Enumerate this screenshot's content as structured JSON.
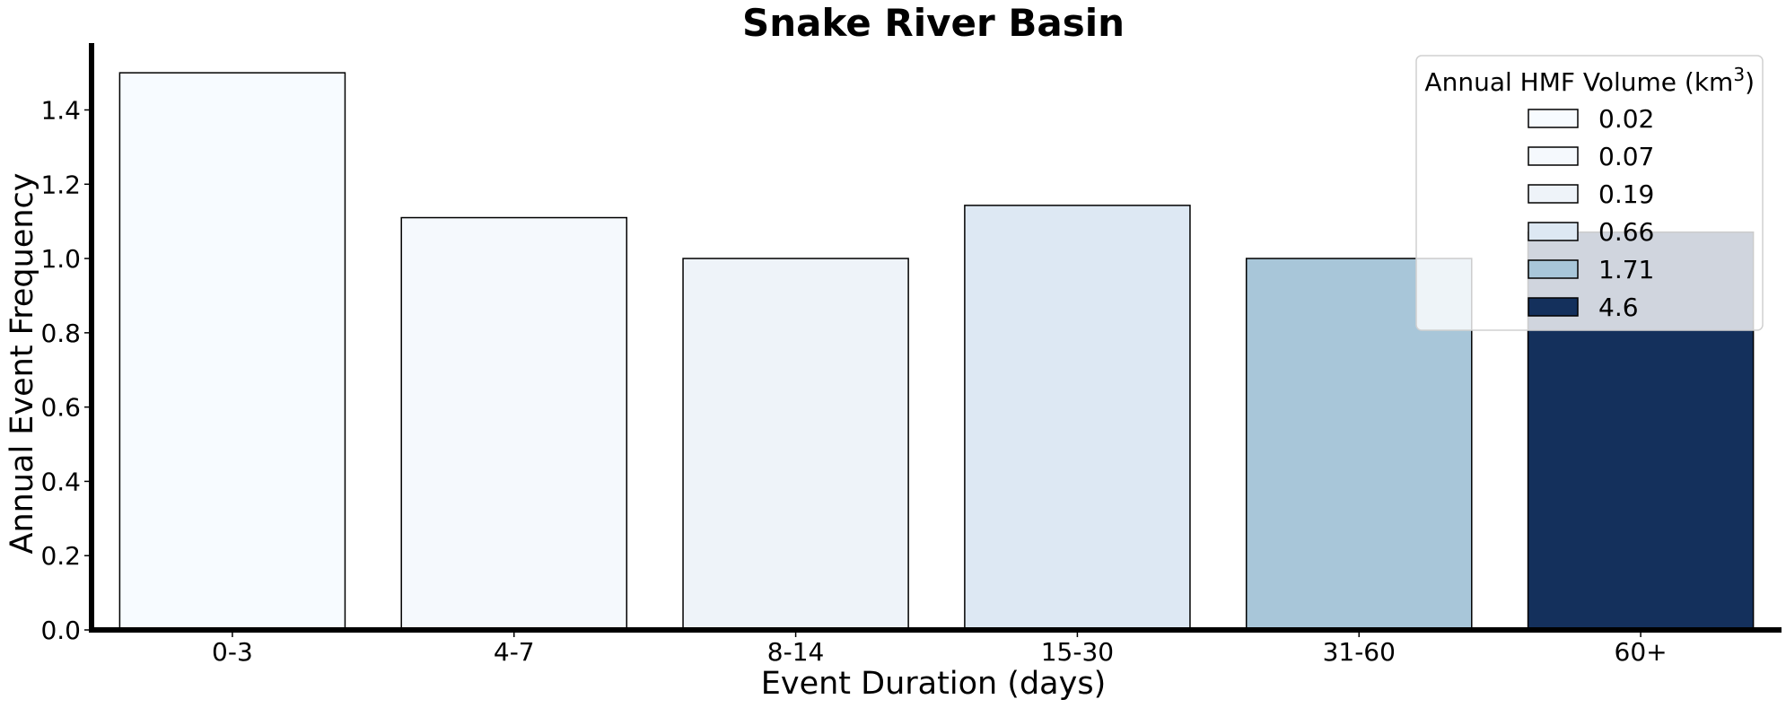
{
  "chart_data": {
    "type": "bar",
    "title": "Snake River Basin",
    "xlabel": "Event Duration (days)",
    "ylabel": "Annual Event Frequency",
    "categories": [
      "0-3",
      "4-7",
      "8-14",
      "15-30",
      "31-60",
      "60+"
    ],
    "values": [
      1.5,
      1.11,
      1.0,
      1.143,
      1.0,
      1.071
    ],
    "bar_colors": [
      "#f7fbff",
      "#f5f9fd",
      "#eef3f9",
      "#dde8f3",
      "#a8c6d9",
      "#14305c"
    ],
    "ylim": [
      0,
      1.58
    ],
    "yticks": [
      0.0,
      0.2,
      0.4,
      0.6,
      0.8,
      1.0,
      1.2,
      1.4
    ],
    "ytick_labels": [
      "0.0",
      "0.2",
      "0.4",
      "0.6",
      "0.8",
      "1.0",
      "1.2",
      "1.4"
    ],
    "grid": false,
    "legend": {
      "title_main": "Annual HMF Volume (km",
      "title_sup": "3",
      "title_end": ")",
      "placement": "top-right",
      "entries": [
        {
          "label": "0.02",
          "color": "#f7fbff"
        },
        {
          "label": "0.07",
          "color": "#f5f9fd"
        },
        {
          "label": "0.19",
          "color": "#eef3f9"
        },
        {
          "label": "0.66",
          "color": "#dde8f3"
        },
        {
          "label": "1.71",
          "color": "#a8c6d9"
        },
        {
          "label": "4.6",
          "color": "#14305c"
        }
      ]
    }
  }
}
